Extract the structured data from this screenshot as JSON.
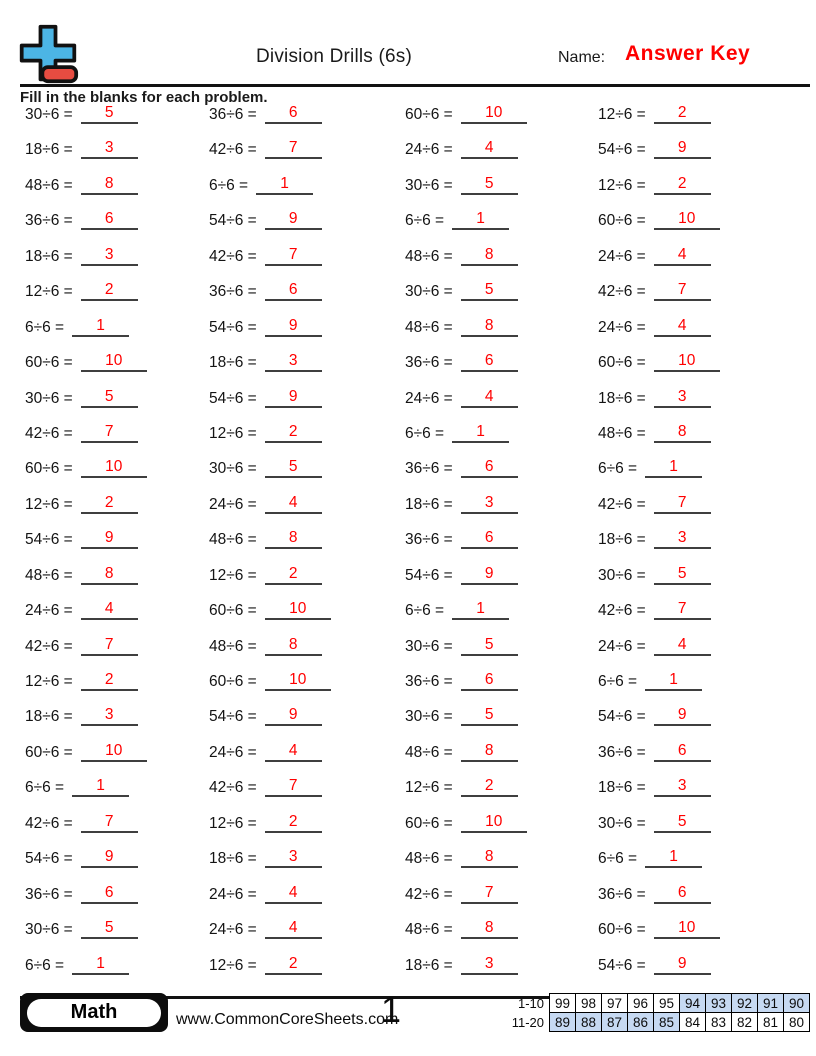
{
  "header": {
    "title": "Division Drills (6s)",
    "name_label": "Name:",
    "answer_key": "Answer Key",
    "instructions": "Fill in the blanks for each problem."
  },
  "problems": {
    "columns": [
      {
        "items": [
          {
            "q": "30÷6 =",
            "a": "5"
          },
          {
            "q": "18÷6 =",
            "a": "3"
          },
          {
            "q": "48÷6 =",
            "a": "8"
          },
          {
            "q": "36÷6 =",
            "a": "6"
          },
          {
            "q": "18÷6 =",
            "a": "3"
          },
          {
            "q": "12÷6 =",
            "a": "2"
          },
          {
            "q": "6÷6 =",
            "a": "1"
          },
          {
            "q": "60÷6 =",
            "a": "10"
          },
          {
            "q": "30÷6 =",
            "a": "5"
          },
          {
            "q": "42÷6 =",
            "a": "7"
          },
          {
            "q": "60÷6 =",
            "a": "10"
          },
          {
            "q": "12÷6 =",
            "a": "2"
          },
          {
            "q": "54÷6 =",
            "a": "9"
          },
          {
            "q": "48÷6 =",
            "a": "8"
          },
          {
            "q": "24÷6 =",
            "a": "4"
          },
          {
            "q": "42÷6 =",
            "a": "7"
          },
          {
            "q": "12÷6 =",
            "a": "2"
          },
          {
            "q": "18÷6 =",
            "a": "3"
          },
          {
            "q": "60÷6 =",
            "a": "10"
          },
          {
            "q": "6÷6 =",
            "a": "1"
          },
          {
            "q": "42÷6 =",
            "a": "7"
          },
          {
            "q": "54÷6 =",
            "a": "9"
          },
          {
            "q": "36÷6 =",
            "a": "6"
          },
          {
            "q": "30÷6 =",
            "a": "5"
          },
          {
            "q": "6÷6 =",
            "a": "1"
          }
        ]
      },
      {
        "items": [
          {
            "q": "36÷6 =",
            "a": "6"
          },
          {
            "q": "42÷6 =",
            "a": "7"
          },
          {
            "q": "6÷6 =",
            "a": "1"
          },
          {
            "q": "54÷6 =",
            "a": "9"
          },
          {
            "q": "42÷6 =",
            "a": "7"
          },
          {
            "q": "36÷6 =",
            "a": "6"
          },
          {
            "q": "54÷6 =",
            "a": "9"
          },
          {
            "q": "18÷6 =",
            "a": "3"
          },
          {
            "q": "54÷6 =",
            "a": "9"
          },
          {
            "q": "12÷6 =",
            "a": "2"
          },
          {
            "q": "30÷6 =",
            "a": "5"
          },
          {
            "q": "24÷6 =",
            "a": "4"
          },
          {
            "q": "48÷6 =",
            "a": "8"
          },
          {
            "q": "12÷6 =",
            "a": "2"
          },
          {
            "q": "60÷6 =",
            "a": "10"
          },
          {
            "q": "48÷6 =",
            "a": "8"
          },
          {
            "q": "60÷6 =",
            "a": "10"
          },
          {
            "q": "54÷6 =",
            "a": "9"
          },
          {
            "q": "24÷6 =",
            "a": "4"
          },
          {
            "q": "42÷6 =",
            "a": "7"
          },
          {
            "q": "12÷6 =",
            "a": "2"
          },
          {
            "q": "18÷6 =",
            "a": "3"
          },
          {
            "q": "24÷6 =",
            "a": "4"
          },
          {
            "q": "24÷6 =",
            "a": "4"
          },
          {
            "q": "12÷6 =",
            "a": "2"
          }
        ]
      },
      {
        "items": [
          {
            "q": "60÷6 =",
            "a": "10"
          },
          {
            "q": "24÷6 =",
            "a": "4"
          },
          {
            "q": "30÷6 =",
            "a": "5"
          },
          {
            "q": "6÷6 =",
            "a": "1"
          },
          {
            "q": "48÷6 =",
            "a": "8"
          },
          {
            "q": "30÷6 =",
            "a": "5"
          },
          {
            "q": "48÷6 =",
            "a": "8"
          },
          {
            "q": "36÷6 =",
            "a": "6"
          },
          {
            "q": "24÷6 =",
            "a": "4"
          },
          {
            "q": "6÷6 =",
            "a": "1"
          },
          {
            "q": "36÷6 =",
            "a": "6"
          },
          {
            "q": "18÷6 =",
            "a": "3"
          },
          {
            "q": "36÷6 =",
            "a": "6"
          },
          {
            "q": "54÷6 =",
            "a": "9"
          },
          {
            "q": "6÷6 =",
            "a": "1"
          },
          {
            "q": "30÷6 =",
            "a": "5"
          },
          {
            "q": "36÷6 =",
            "a": "6"
          },
          {
            "q": "30÷6 =",
            "a": "5"
          },
          {
            "q": "48÷6 =",
            "a": "8"
          },
          {
            "q": "12÷6 =",
            "a": "2"
          },
          {
            "q": "60÷6 =",
            "a": "10"
          },
          {
            "q": "48÷6 =",
            "a": "8"
          },
          {
            "q": "42÷6 =",
            "a": "7"
          },
          {
            "q": "48÷6 =",
            "a": "8"
          },
          {
            "q": "18÷6 =",
            "a": "3"
          }
        ]
      },
      {
        "items": [
          {
            "q": "12÷6 =",
            "a": "2"
          },
          {
            "q": "54÷6 =",
            "a": "9"
          },
          {
            "q": "12÷6 =",
            "a": "2"
          },
          {
            "q": "60÷6 =",
            "a": "10"
          },
          {
            "q": "24÷6 =",
            "a": "4"
          },
          {
            "q": "42÷6 =",
            "a": "7"
          },
          {
            "q": "24÷6 =",
            "a": "4"
          },
          {
            "q": "60÷6 =",
            "a": "10"
          },
          {
            "q": "18÷6 =",
            "a": "3"
          },
          {
            "q": "48÷6 =",
            "a": "8"
          },
          {
            "q": "6÷6 =",
            "a": "1"
          },
          {
            "q": "42÷6 =",
            "a": "7"
          },
          {
            "q": "18÷6 =",
            "a": "3"
          },
          {
            "q": "30÷6 =",
            "a": "5"
          },
          {
            "q": "42÷6 =",
            "a": "7"
          },
          {
            "q": "24÷6 =",
            "a": "4"
          },
          {
            "q": "6÷6 =",
            "a": "1"
          },
          {
            "q": "54÷6 =",
            "a": "9"
          },
          {
            "q": "36÷6 =",
            "a": "6"
          },
          {
            "q": "18÷6 =",
            "a": "3"
          },
          {
            "q": "30÷6 =",
            "a": "5"
          },
          {
            "q": "6÷6 =",
            "a": "1"
          },
          {
            "q": "36÷6 =",
            "a": "6"
          },
          {
            "q": "60÷6 =",
            "a": "10"
          },
          {
            "q": "54÷6 =",
            "a": "9"
          }
        ]
      }
    ]
  },
  "footer": {
    "subject": "Math",
    "website": "www.CommonCoreSheets.com",
    "page_number": "1",
    "score_table": {
      "rows": [
        {
          "label": "1-10",
          "cells": [
            {
              "v": "99",
              "shaded": false
            },
            {
              "v": "98",
              "shaded": false
            },
            {
              "v": "97",
              "shaded": false
            },
            {
              "v": "96",
              "shaded": false
            },
            {
              "v": "95",
              "shaded": false
            },
            {
              "v": "94",
              "shaded": true
            },
            {
              "v": "93",
              "shaded": true
            },
            {
              "v": "92",
              "shaded": true
            },
            {
              "v": "91",
              "shaded": true
            },
            {
              "v": "90",
              "shaded": true
            }
          ]
        },
        {
          "label": "11-20",
          "cells": [
            {
              "v": "89",
              "shaded": true
            },
            {
              "v": "88",
              "shaded": true
            },
            {
              "v": "87",
              "shaded": true
            },
            {
              "v": "86",
              "shaded": true
            },
            {
              "v": "85",
              "shaded": true
            },
            {
              "v": "84",
              "shaded": false
            },
            {
              "v": "83",
              "shaded": false
            },
            {
              "v": "82",
              "shaded": false
            },
            {
              "v": "81",
              "shaded": false
            },
            {
              "v": "80",
              "shaded": false
            }
          ]
        }
      ]
    }
  },
  "colors": {
    "answer_red": "#ff0000",
    "shade_blue": "#c6d9f2",
    "logo_blue": "#4cb5e5",
    "logo_red": "#e74c41"
  }
}
